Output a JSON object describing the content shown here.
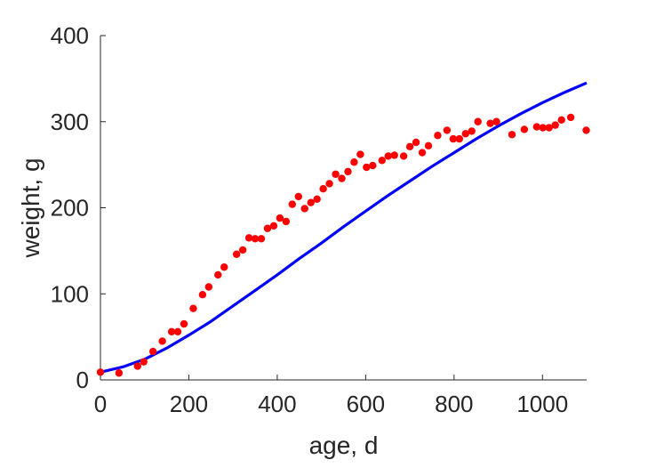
{
  "chart_data": {
    "type": "scatter",
    "title": "",
    "xlabel": "age, d",
    "ylabel": "weight, g",
    "xlim": [
      0,
      1100
    ],
    "ylim": [
      0,
      400
    ],
    "xticks": [
      0,
      200,
      400,
      600,
      800,
      1000
    ],
    "yticks": [
      0,
      100,
      200,
      300,
      400
    ],
    "grid": false,
    "legend": "none",
    "colors": {
      "points": "#ff0000",
      "curve": "#0000ff",
      "axis": "#262626"
    },
    "series": [
      {
        "kind": "scatter",
        "x": [
          0,
          42,
          84,
          98,
          119,
          140,
          161,
          175,
          189,
          210,
          231,
          245,
          266,
          280,
          308,
          322,
          336,
          350,
          364,
          378,
          392,
          406,
          420,
          434,
          448,
          462,
          476,
          490,
          504,
          518,
          532,
          546,
          560,
          574,
          588,
          602,
          616,
          637,
          651,
          665,
          686,
          700,
          714,
          728,
          742,
          763,
          784,
          798,
          812,
          826,
          840,
          854,
          882,
          896,
          931,
          959,
          987,
          1001,
          1015,
          1029,
          1043,
          1064,
          1099
        ],
        "y": [
          9,
          8,
          16,
          21,
          33,
          45,
          56,
          56,
          65,
          83,
          99,
          108,
          122,
          131,
          146,
          151,
          165,
          164,
          164,
          176,
          179,
          188,
          184,
          204,
          213,
          199,
          206,
          210,
          222,
          228,
          239,
          234,
          242,
          253,
          262,
          247,
          249,
          255,
          260,
          261,
          260,
          271,
          276,
          264,
          272,
          284,
          290,
          280,
          280,
          286,
          289,
          300,
          298,
          300,
          285,
          291,
          294,
          293,
          293,
          296,
          302,
          305,
          290
        ]
      },
      {
        "kind": "line",
        "x": [
          0,
          50,
          100,
          150,
          200,
          250,
          300,
          350,
          400,
          450,
          500,
          550,
          600,
          650,
          700,
          750,
          800,
          850,
          900,
          950,
          1000,
          1050,
          1100
        ],
        "y": [
          9,
          15,
          24,
          37,
          52,
          68,
          86,
          104,
          122,
          141,
          159,
          178,
          196,
          214,
          231,
          248,
          264,
          280,
          295,
          309,
          322,
          334,
          345
        ]
      }
    ]
  }
}
